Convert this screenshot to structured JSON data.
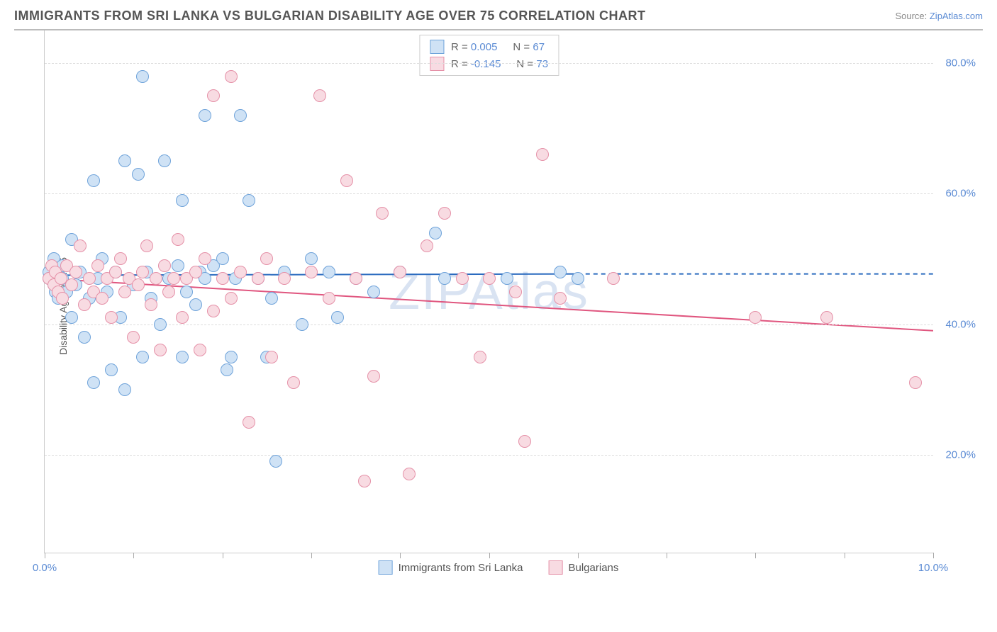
{
  "title": "IMMIGRANTS FROM SRI LANKA VS BULGARIAN DISABILITY AGE OVER 75 CORRELATION CHART",
  "source_prefix": "Source: ",
  "source_name": "ZipAtlas.com",
  "watermark": "ZIPAtlas",
  "ylabel": "Disability Age Over 75",
  "chart": {
    "type": "scatter",
    "xlim": [
      0,
      10
    ],
    "ylim": [
      5,
      85
    ],
    "x_ticks": [
      0,
      1,
      2,
      3,
      4,
      5,
      6,
      7,
      8,
      9,
      10
    ],
    "x_tick_labels": {
      "0": "0.0%",
      "10": "10.0%"
    },
    "y_ticks": [
      20,
      40,
      60,
      80
    ],
    "y_tick_labels": [
      "20.0%",
      "40.0%",
      "60.0%",
      "80.0%"
    ],
    "grid_color": "#dddddd",
    "axis_color": "#cccccc",
    "background_color": "#ffffff",
    "tick_label_color": "#5b8bd4",
    "marker_radius": 9,
    "marker_stroke_width": 1.5,
    "trend_line_width": 2
  },
  "series": [
    {
      "key": "sri_lanka",
      "label": "Immigrants from Sri Lanka",
      "fill": "#cfe2f5",
      "stroke": "#6fa3da",
      "line_color": "#2b6bbf",
      "R": "0.005",
      "N": "67",
      "trend": {
        "x1": 0,
        "y1": 47.5,
        "x2": 6,
        "y2": 47.7,
        "dash_x": 10,
        "dash_y": 47.7
      },
      "points": [
        [
          0.05,
          48
        ],
        [
          0.05,
          47
        ],
        [
          0.1,
          50
        ],
        [
          0.1,
          46
        ],
        [
          0.12,
          45
        ],
        [
          0.15,
          48
        ],
        [
          0.15,
          44
        ],
        [
          0.2,
          47
        ],
        [
          0.2,
          49
        ],
        [
          0.25,
          45
        ],
        [
          0.3,
          53
        ],
        [
          0.3,
          41
        ],
        [
          0.35,
          46
        ],
        [
          0.4,
          48
        ],
        [
          0.45,
          38
        ],
        [
          0.5,
          44
        ],
        [
          0.55,
          62
        ],
        [
          0.55,
          31
        ],
        [
          0.6,
          47
        ],
        [
          0.65,
          50
        ],
        [
          0.7,
          45
        ],
        [
          0.75,
          33
        ],
        [
          0.8,
          48
        ],
        [
          0.85,
          41
        ],
        [
          0.9,
          65
        ],
        [
          0.9,
          30
        ],
        [
          1.0,
          46
        ],
        [
          1.05,
          63
        ],
        [
          1.1,
          78
        ],
        [
          1.1,
          35
        ],
        [
          1.15,
          48
        ],
        [
          1.2,
          44
        ],
        [
          1.3,
          40
        ],
        [
          1.35,
          65
        ],
        [
          1.4,
          47
        ],
        [
          1.5,
          49
        ],
        [
          1.55,
          35
        ],
        [
          1.55,
          59
        ],
        [
          1.6,
          45
        ],
        [
          1.7,
          43
        ],
        [
          1.75,
          48
        ],
        [
          1.8,
          72
        ],
        [
          1.8,
          47
        ],
        [
          1.9,
          49
        ],
        [
          2.0,
          50
        ],
        [
          2.05,
          33
        ],
        [
          2.1,
          35
        ],
        [
          2.15,
          47
        ],
        [
          2.2,
          72
        ],
        [
          2.3,
          59
        ],
        [
          2.4,
          47
        ],
        [
          2.5,
          35
        ],
        [
          2.55,
          44
        ],
        [
          2.6,
          19
        ],
        [
          2.7,
          48
        ],
        [
          2.9,
          40
        ],
        [
          3.0,
          50
        ],
        [
          3.2,
          48
        ],
        [
          3.3,
          41
        ],
        [
          3.5,
          47
        ],
        [
          3.7,
          45
        ],
        [
          4.0,
          48
        ],
        [
          4.4,
          54
        ],
        [
          4.5,
          47
        ],
        [
          5.2,
          47
        ],
        [
          5.8,
          48
        ],
        [
          6.0,
          47
        ]
      ]
    },
    {
      "key": "bulgarians",
      "label": "Bulgarians",
      "fill": "#f8dbe2",
      "stroke": "#e591a8",
      "line_color": "#e0567f",
      "R": "-0.145",
      "N": "73",
      "trend": {
        "x1": 0,
        "y1": 47.0,
        "x2": 10,
        "y2": 39.0
      },
      "points": [
        [
          0.05,
          47
        ],
        [
          0.08,
          49
        ],
        [
          0.1,
          46
        ],
        [
          0.12,
          48
        ],
        [
          0.15,
          45
        ],
        [
          0.18,
          47
        ],
        [
          0.2,
          44
        ],
        [
          0.25,
          49
        ],
        [
          0.3,
          46
        ],
        [
          0.35,
          48
        ],
        [
          0.4,
          52
        ],
        [
          0.45,
          43
        ],
        [
          0.5,
          47
        ],
        [
          0.55,
          45
        ],
        [
          0.6,
          49
        ],
        [
          0.65,
          44
        ],
        [
          0.7,
          47
        ],
        [
          0.75,
          41
        ],
        [
          0.8,
          48
        ],
        [
          0.85,
          50
        ],
        [
          0.9,
          45
        ],
        [
          0.95,
          47
        ],
        [
          1.0,
          38
        ],
        [
          1.05,
          46
        ],
        [
          1.1,
          48
        ],
        [
          1.15,
          52
        ],
        [
          1.2,
          43
        ],
        [
          1.25,
          47
        ],
        [
          1.3,
          36
        ],
        [
          1.35,
          49
        ],
        [
          1.4,
          45
        ],
        [
          1.45,
          47
        ],
        [
          1.5,
          53
        ],
        [
          1.55,
          41
        ],
        [
          1.6,
          47
        ],
        [
          1.7,
          48
        ],
        [
          1.75,
          36
        ],
        [
          1.8,
          50
        ],
        [
          1.9,
          42
        ],
        [
          1.9,
          75
        ],
        [
          2.0,
          47
        ],
        [
          2.1,
          78
        ],
        [
          2.1,
          44
        ],
        [
          2.2,
          48
        ],
        [
          2.3,
          25
        ],
        [
          2.4,
          47
        ],
        [
          2.5,
          50
        ],
        [
          2.55,
          35
        ],
        [
          2.7,
          47
        ],
        [
          2.8,
          31
        ],
        [
          3.0,
          48
        ],
        [
          3.1,
          75
        ],
        [
          3.2,
          44
        ],
        [
          3.4,
          62
        ],
        [
          3.5,
          47
        ],
        [
          3.6,
          16
        ],
        [
          3.7,
          32
        ],
        [
          3.8,
          57
        ],
        [
          4.0,
          48
        ],
        [
          4.1,
          17
        ],
        [
          4.3,
          52
        ],
        [
          4.5,
          57
        ],
        [
          4.7,
          47
        ],
        [
          4.9,
          35
        ],
        [
          5.0,
          47
        ],
        [
          5.3,
          45
        ],
        [
          5.4,
          22
        ],
        [
          5.6,
          66
        ],
        [
          5.8,
          44
        ],
        [
          6.4,
          47
        ],
        [
          8.0,
          41
        ],
        [
          8.8,
          41
        ],
        [
          9.8,
          31
        ]
      ]
    }
  ],
  "legend_labels": {
    "R_prefix": "R = ",
    "N_prefix": "N = "
  }
}
